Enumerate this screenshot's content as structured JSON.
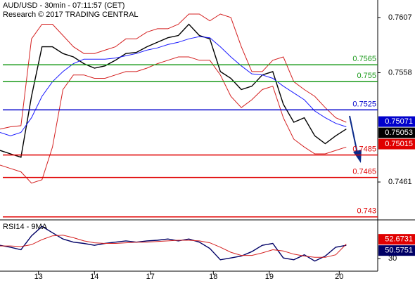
{
  "chart_data": [
    {
      "type": "line",
      "title": "AUD/USD - 30min - 07:11:57 (CET)",
      "subtitle": "Research © 2017 TRADING CENTRAL",
      "x": [
        0,
        3,
        6,
        9,
        12,
        15,
        18,
        21,
        24,
        27,
        30,
        33,
        36,
        39,
        42,
        45,
        48,
        51,
        54,
        57,
        60,
        63,
        66,
        69,
        72,
        75,
        78,
        81,
        84,
        87,
        90,
        93,
        96,
        99
      ],
      "xlim": [
        0,
        108
      ],
      "ylim": [
        0.7428,
        0.762
      ],
      "yticks": [
        0.7607,
        0.7558,
        0.7461
      ],
      "series": [
        {
          "color": "#000000",
          "values": [
            0.7489,
            0.7486,
            0.7483,
            0.7537,
            0.7581,
            0.7581,
            0.7575,
            0.7572,
            0.7566,
            0.7562,
            0.7564,
            0.7569,
            0.7575,
            0.7576,
            0.7581,
            0.7585,
            0.7589,
            0.7591,
            0.7601,
            0.7591,
            0.7588,
            0.7559,
            0.7553,
            0.7543,
            0.7546,
            0.7556,
            0.7559,
            0.753,
            0.7514,
            0.7518,
            0.7502,
            0.7495,
            0.7502,
            0.7508
          ]
        },
        {
          "color": "#1a1aff",
          "values": [
            0.7505,
            0.7502,
            0.7505,
            0.7518,
            0.7537,
            0.755,
            0.7559,
            0.7566,
            0.757,
            0.757,
            0.757,
            0.7571,
            0.7573,
            0.7575,
            0.7578,
            0.758,
            0.7583,
            0.7585,
            0.7588,
            0.759,
            0.7589,
            0.7581,
            0.7572,
            0.7564,
            0.7557,
            0.7556,
            0.7553,
            0.7546,
            0.754,
            0.7534,
            0.7524,
            0.7518,
            0.7513,
            0.751
          ]
        },
        {
          "color": "#d42020",
          "values": [
            0.7508,
            0.751,
            0.7511,
            0.7588,
            0.7601,
            0.7601,
            0.7591,
            0.7581,
            0.7575,
            0.7575,
            0.7578,
            0.7581,
            0.7588,
            0.7588,
            0.7594,
            0.7597,
            0.7597,
            0.7601,
            0.761,
            0.761,
            0.7604,
            0.761,
            0.7607,
            0.7581,
            0.7559,
            0.7559,
            0.7569,
            0.7572,
            0.755,
            0.7543,
            0.7537,
            0.7527,
            0.7518,
            0.7514
          ]
        },
        {
          "color": "#d42020",
          "values": [
            0.7476,
            0.7473,
            0.747,
            0.746,
            0.7463,
            0.7492,
            0.7543,
            0.7556,
            0.7556,
            0.7553,
            0.7553,
            0.7556,
            0.7559,
            0.7559,
            0.7562,
            0.7566,
            0.7569,
            0.7572,
            0.7572,
            0.7569,
            0.7569,
            0.7556,
            0.7537,
            0.7527,
            0.7534,
            0.7543,
            0.7546,
            0.7518,
            0.7499,
            0.7492,
            0.7486,
            0.7486,
            0.7489,
            0.7492
          ]
        }
      ],
      "levels": [
        {
          "value": 0.7565,
          "color": "#1a9a1a"
        },
        {
          "value": 0.755,
          "color": "#1a9a1a"
        },
        {
          "value": 0.7525,
          "color": "#0000cc"
        },
        {
          "value": 0.7485,
          "color": "#e00000"
        },
        {
          "value": 0.7465,
          "color": "#e00000"
        },
        {
          "value": 0.743,
          "color": "#e00000"
        }
      ],
      "boxes": [
        {
          "value": 0.75071,
          "color": "#0000cc"
        },
        {
          "value": 0.75053,
          "color": "#000000"
        },
        {
          "value": 0.75015,
          "color": "#e00000"
        }
      ]
    },
    {
      "type": "line",
      "title": "RSI14 - 9MA",
      "x": [
        0,
        3,
        6,
        9,
        12,
        15,
        18,
        21,
        24,
        27,
        30,
        33,
        36,
        39,
        42,
        45,
        48,
        51,
        54,
        57,
        60,
        63,
        66,
        69,
        72,
        75,
        78,
        81,
        84,
        87,
        90,
        93,
        96,
        99
      ],
      "xlim": [
        0,
        108
      ],
      "ylim": [
        10,
        88
      ],
      "yticks": [
        30
      ],
      "xticks": [
        {
          "value": 11,
          "label": "13"
        },
        {
          "value": 27,
          "label": "14"
        },
        {
          "value": 43,
          "label": "17"
        },
        {
          "value": 61,
          "label": "18"
        },
        {
          "value": 77,
          "label": "19"
        },
        {
          "value": 97,
          "label": "20"
        }
      ],
      "series": [
        {
          "color": "#000066",
          "values": [
            51,
            48,
            44,
            66,
            81,
            71,
            61,
            56,
            54,
            51,
            54,
            56,
            58,
            56,
            58,
            59,
            61,
            58,
            61,
            56,
            46,
            28,
            31,
            34,
            41,
            51,
            54,
            31,
            28,
            36,
            26,
            34,
            48,
            51
          ]
        },
        {
          "color": "#d42020",
          "values": [
            50,
            50,
            49,
            52,
            60,
            66,
            67,
            63,
            58,
            55,
            54,
            54,
            55,
            56,
            56,
            57,
            58,
            59,
            59,
            58,
            55,
            48,
            40,
            35,
            35,
            39,
            44,
            42,
            37,
            34,
            32,
            32,
            36,
            53
          ]
        }
      ],
      "boxes": [
        {
          "value": 52.6731,
          "color": "#e00000"
        },
        {
          "value": 50.5751,
          "color": "#000066"
        }
      ]
    }
  ]
}
